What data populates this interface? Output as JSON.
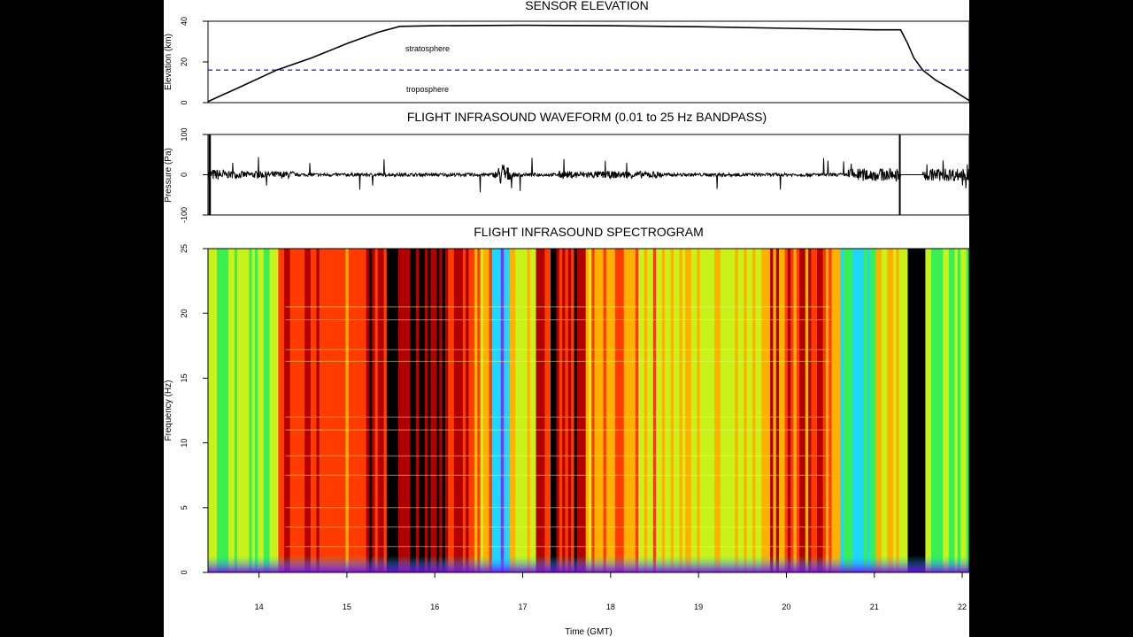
{
  "page": {
    "background": "#000000",
    "panel_background": "#ffffff"
  },
  "time_axis": {
    "label": "Time (GMT)",
    "range": [
      13.42,
      22.08
    ],
    "ticks": [
      14,
      15,
      16,
      17,
      18,
      19,
      20,
      21,
      22
    ]
  },
  "chart_data": [
    {
      "type": "line",
      "title": "SENSOR ELEVATION",
      "ylabel": "Elevation (km)",
      "xlim": [
        13.42,
        22.08
      ],
      "ylim": [
        0,
        40
      ],
      "yticks": [
        0,
        20,
        40
      ],
      "series": [
        {
          "x": [
            13.42,
            13.8,
            14.2,
            14.6,
            15.0,
            15.35,
            15.6,
            16.0,
            17.0,
            18.0,
            19.0,
            20.0,
            21.0,
            21.3,
            21.38,
            21.45,
            21.55,
            21.7,
            21.9,
            22.08
          ],
          "values": [
            0.5,
            8,
            16,
            22,
            29,
            34.5,
            37.5,
            37.8,
            38.0,
            37.8,
            37.3,
            36.5,
            35.8,
            35.8,
            29,
            22,
            16,
            11,
            6,
            1
          ]
        }
      ],
      "reference_line": {
        "y": 16,
        "style": "dashed",
        "color": "#2b2bcf"
      },
      "annotations": [
        "stratosphere",
        "troposphere"
      ]
    },
    {
      "type": "line",
      "title": "FLIGHT INFRASOUND WAVEFORM (0.01 to 25 Hz BANDPASS)",
      "ylabel": "Pressure (Pa)",
      "xlim": [
        13.42,
        22.08
      ],
      "ylim": [
        -100,
        100
      ],
      "yticks": [
        -100,
        0,
        100
      ]
    },
    {
      "type": "heatmap",
      "title": "FLIGHT INFRASOUND SPECTROGRAM",
      "ylabel": "Frequency (Hz)",
      "xlabel": "Time (GMT)",
      "xlim": [
        13.42,
        22.08
      ],
      "ylim": [
        0,
        25
      ],
      "yticks": [
        0,
        5,
        10,
        15,
        20,
        25
      ],
      "xticks": [
        14,
        15,
        16,
        17,
        18,
        19,
        20,
        21,
        22
      ],
      "colormap": [
        "#7a00ff",
        "#00e5ff",
        "#4cff00",
        "#ffee00",
        "#ff2200",
        "#000000"
      ]
    }
  ]
}
